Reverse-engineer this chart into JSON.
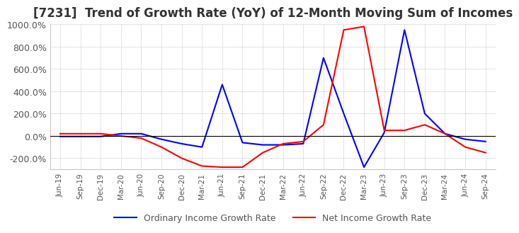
{
  "title": "[7231]  Trend of Growth Rate (YoY) of 12-Month Moving Sum of Incomes",
  "title_fontsize": 12,
  "ylim": [
    -300,
    1000
  ],
  "yticks": [
    -200,
    0,
    200,
    400,
    600,
    800,
    1000
  ],
  "legend_labels": [
    "Ordinary Income Growth Rate",
    "Net Income Growth Rate"
  ],
  "line_colors": [
    "blue",
    "red"
  ],
  "background_color": "#ffffff",
  "plot_bg_color": "#ffffff",
  "x_labels": [
    "Jun-19",
    "Sep-19",
    "Dec-19",
    "Mar-20",
    "Jun-20",
    "Sep-20",
    "Dec-20",
    "Mar-21",
    "Jun-21",
    "Sep-21",
    "Dec-21",
    "Mar-22",
    "Jun-22",
    "Sep-22",
    "Dec-22",
    "Mar-23",
    "Jun-23",
    "Sep-23",
    "Dec-23",
    "Mar-24",
    "Jun-24",
    "Sep-24"
  ],
  "ordinary_income": [
    -5,
    -5,
    -5,
    20,
    20,
    -30,
    -70,
    -100,
    460,
    -60,
    -80,
    -80,
    -70,
    700,
    200,
    -280,
    30,
    950,
    200,
    20,
    -30,
    -50
  ],
  "net_income": [
    20,
    20,
    20,
    0,
    -20,
    -100,
    -200,
    -270,
    -280,
    -280,
    -150,
    -70,
    -50,
    100,
    950,
    980,
    50,
    50,
    100,
    20,
    -100,
    -150
  ]
}
